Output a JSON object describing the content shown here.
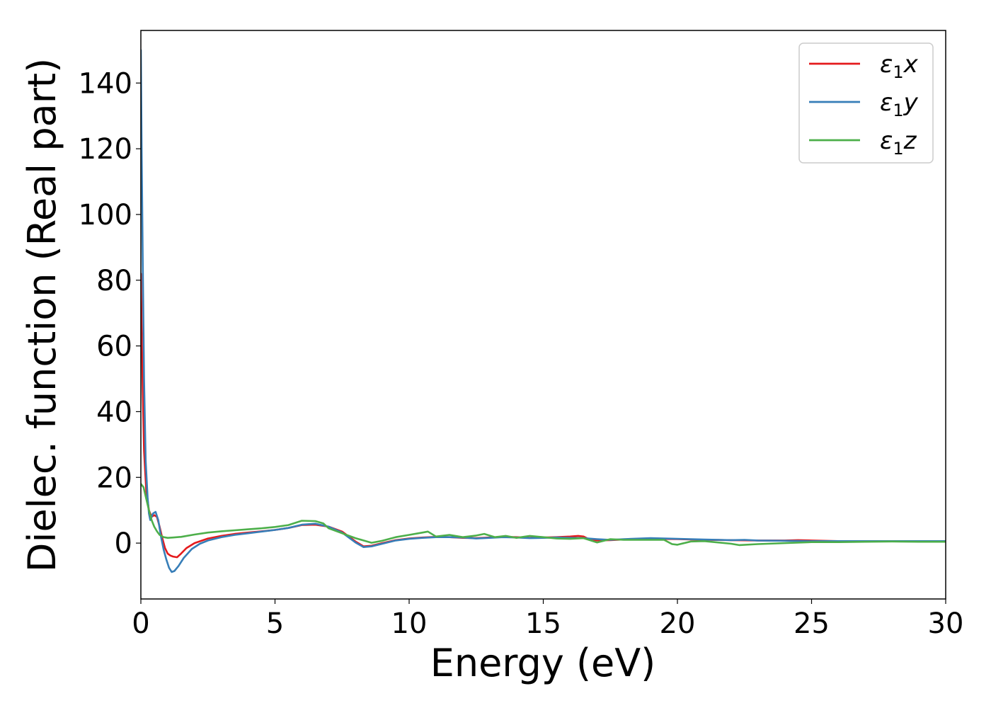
{
  "chart_data": {
    "type": "line",
    "title": "",
    "xlabel": "Energy (eV)",
    "ylabel": "Dielec. function (Real part)",
    "xlim": [
      0,
      30
    ],
    "ylim": [
      -17,
      156
    ],
    "x_ticks": [
      0,
      5,
      10,
      15,
      20,
      25,
      30
    ],
    "y_ticks": [
      0,
      20,
      40,
      60,
      80,
      100,
      120,
      140
    ],
    "grid": false,
    "legend_position": "top-right",
    "series": [
      {
        "name": "ε₁x",
        "legend_base": "ε",
        "legend_sub": "1",
        "legend_var": "x",
        "color": "#e41a1c",
        "points": [
          [
            0,
            82
          ],
          [
            0.03,
            65
          ],
          [
            0.07,
            46
          ],
          [
            0.12,
            28
          ],
          [
            0.2,
            16
          ],
          [
            0.3,
            10
          ],
          [
            0.4,
            8
          ],
          [
            0.5,
            8.5
          ],
          [
            0.6,
            8
          ],
          [
            0.7,
            5
          ],
          [
            0.8,
            1.5
          ],
          [
            0.9,
            -1.5
          ],
          [
            1.0,
            -3.2
          ],
          [
            1.1,
            -3.8
          ],
          [
            1.2,
            -4.1
          ],
          [
            1.35,
            -4.3
          ],
          [
            1.5,
            -3.2
          ],
          [
            1.7,
            -1.5
          ],
          [
            2.0,
            0
          ],
          [
            2.5,
            1.4
          ],
          [
            3,
            2.2
          ],
          [
            3.5,
            2.8
          ],
          [
            4,
            3.2
          ],
          [
            4.5,
            3.6
          ],
          [
            5,
            4.0
          ],
          [
            5.5,
            4.6
          ],
          [
            6.0,
            5.5
          ],
          [
            6.5,
            5.6
          ],
          [
            7.0,
            5.0
          ],
          [
            7.5,
            3.5
          ],
          [
            8.0,
            0.5
          ],
          [
            8.3,
            -1.0
          ],
          [
            8.6,
            -0.8
          ],
          [
            9.0,
            0
          ],
          [
            9.5,
            0.9
          ],
          [
            10,
            1.4
          ],
          [
            10.5,
            1.7
          ],
          [
            11,
            1.9
          ],
          [
            11.5,
            1.8
          ],
          [
            12,
            1.6
          ],
          [
            12.5,
            1.5
          ],
          [
            13,
            1.7
          ],
          [
            13.5,
            1.9
          ],
          [
            14,
            1.8
          ],
          [
            14.5,
            1.6
          ],
          [
            15,
            1.7
          ],
          [
            15.5,
            1.8
          ],
          [
            16,
            2.0
          ],
          [
            16.3,
            2.2
          ],
          [
            16.5,
            2.0
          ],
          [
            16.8,
            0.8
          ],
          [
            17.5,
            0.9
          ],
          [
            18,
            1.1
          ],
          [
            19,
            1.3
          ],
          [
            20,
            1.2
          ],
          [
            21,
            1.0
          ],
          [
            22,
            0.9
          ],
          [
            23,
            0.8
          ],
          [
            24,
            0.8
          ],
          [
            24.5,
            0.9
          ],
          [
            25,
            0.8
          ],
          [
            26,
            0.6
          ],
          [
            27,
            0.6
          ],
          [
            28,
            0.6
          ],
          [
            29,
            0.6
          ],
          [
            30,
            0.6
          ]
        ]
      },
      {
        "name": "ε₁y",
        "legend_base": "ε",
        "legend_sub": "1",
        "legend_var": "y",
        "color": "#377eb8",
        "points": [
          [
            0,
            150
          ],
          [
            0.03,
            120
          ],
          [
            0.07,
            85
          ],
          [
            0.12,
            50
          ],
          [
            0.18,
            25
          ],
          [
            0.25,
            14
          ],
          [
            0.3,
            9
          ],
          [
            0.35,
            7
          ],
          [
            0.45,
            9
          ],
          [
            0.55,
            9.5
          ],
          [
            0.65,
            7
          ],
          [
            0.75,
            2
          ],
          [
            0.85,
            -2
          ],
          [
            0.95,
            -5
          ],
          [
            1.05,
            -7.5
          ],
          [
            1.15,
            -8.8
          ],
          [
            1.25,
            -8.5
          ],
          [
            1.4,
            -7
          ],
          [
            1.6,
            -4.5
          ],
          [
            1.9,
            -1.8
          ],
          [
            2.2,
            -0.2
          ],
          [
            2.5,
            0.8
          ],
          [
            3,
            1.8
          ],
          [
            3.5,
            2.5
          ],
          [
            4,
            3.0
          ],
          [
            4.5,
            3.5
          ],
          [
            5,
            4.0
          ],
          [
            5.5,
            4.6
          ],
          [
            6.0,
            5.6
          ],
          [
            6.5,
            5.9
          ],
          [
            7.0,
            5.0
          ],
          [
            7.5,
            3.2
          ],
          [
            8.0,
            0.2
          ],
          [
            8.3,
            -1.2
          ],
          [
            8.6,
            -1.0
          ],
          [
            9.0,
            -0.2
          ],
          [
            9.5,
            0.8
          ],
          [
            10,
            1.3
          ],
          [
            10.5,
            1.6
          ],
          [
            11,
            1.8
          ],
          [
            11.5,
            1.8
          ],
          [
            12,
            1.7
          ],
          [
            12.5,
            1.4
          ],
          [
            13,
            1.6
          ],
          [
            13.5,
            1.8
          ],
          [
            14,
            1.7
          ],
          [
            14.5,
            1.5
          ],
          [
            15,
            1.6
          ],
          [
            15.5,
            1.7
          ],
          [
            16,
            1.6
          ],
          [
            16.5,
            1.5
          ],
          [
            17,
            1.2
          ],
          [
            17.5,
            1.0
          ],
          [
            18,
            1.2
          ],
          [
            19,
            1.5
          ],
          [
            20,
            1.3
          ],
          [
            21,
            1.1
          ],
          [
            22,
            0.9
          ],
          [
            22.5,
            1.0
          ],
          [
            23,
            0.8
          ],
          [
            24,
            0.7
          ],
          [
            25,
            0.6
          ],
          [
            26,
            0.6
          ],
          [
            27,
            0.6
          ],
          [
            28,
            0.6
          ],
          [
            29,
            0.6
          ],
          [
            30,
            0.6
          ]
        ]
      },
      {
        "name": "ε₁z",
        "legend_base": "ε",
        "legend_sub": "1",
        "legend_var": "z",
        "color": "#4daf4a",
        "points": [
          [
            0,
            18
          ],
          [
            0.1,
            17
          ],
          [
            0.2,
            13.5
          ],
          [
            0.3,
            10
          ],
          [
            0.4,
            7
          ],
          [
            0.5,
            5
          ],
          [
            0.6,
            3.6
          ],
          [
            0.7,
            2.5
          ],
          [
            0.85,
            1.8
          ],
          [
            1.0,
            1.6
          ],
          [
            1.2,
            1.7
          ],
          [
            1.5,
            1.9
          ],
          [
            2.0,
            2.6
          ],
          [
            2.5,
            3.2
          ],
          [
            3,
            3.6
          ],
          [
            3.5,
            3.9
          ],
          [
            4,
            4.2
          ],
          [
            4.5,
            4.5
          ],
          [
            5,
            4.9
          ],
          [
            5.5,
            5.5
          ],
          [
            6.0,
            6.8
          ],
          [
            6.5,
            6.7
          ],
          [
            6.8,
            6.0
          ],
          [
            7.0,
            4.5
          ],
          [
            7.5,
            3.0
          ],
          [
            8.0,
            1.5
          ],
          [
            8.3,
            0.8
          ],
          [
            8.6,
            0.1
          ],
          [
            9.0,
            0.7
          ],
          [
            9.5,
            1.8
          ],
          [
            10,
            2.5
          ],
          [
            10.5,
            3.2
          ],
          [
            10.7,
            3.5
          ],
          [
            11,
            2.0
          ],
          [
            11.5,
            2.5
          ],
          [
            12,
            1.8
          ],
          [
            12.5,
            2.3
          ],
          [
            12.8,
            2.8
          ],
          [
            13.2,
            1.8
          ],
          [
            13.6,
            2.2
          ],
          [
            14,
            1.6
          ],
          [
            14.5,
            2.2
          ],
          [
            15,
            1.8
          ],
          [
            15.5,
            1.4
          ],
          [
            16,
            1.3
          ],
          [
            16.5,
            1.5
          ],
          [
            17,
            0.2
          ],
          [
            17.5,
            1.2
          ],
          [
            18,
            1.0
          ],
          [
            19,
            1.0
          ],
          [
            19.5,
            1.0
          ],
          [
            19.8,
            -0.3
          ],
          [
            20,
            -0.5
          ],
          [
            20.5,
            0.5
          ],
          [
            21,
            0.6
          ],
          [
            22,
            -0.2
          ],
          [
            22.3,
            -0.6
          ],
          [
            23,
            -0.3
          ],
          [
            24,
            0.0
          ],
          [
            25,
            0.3
          ],
          [
            26,
            0.3
          ],
          [
            27,
            0.4
          ],
          [
            28,
            0.5
          ],
          [
            29,
            0.4
          ],
          [
            30,
            0.4
          ]
        ]
      }
    ]
  }
}
